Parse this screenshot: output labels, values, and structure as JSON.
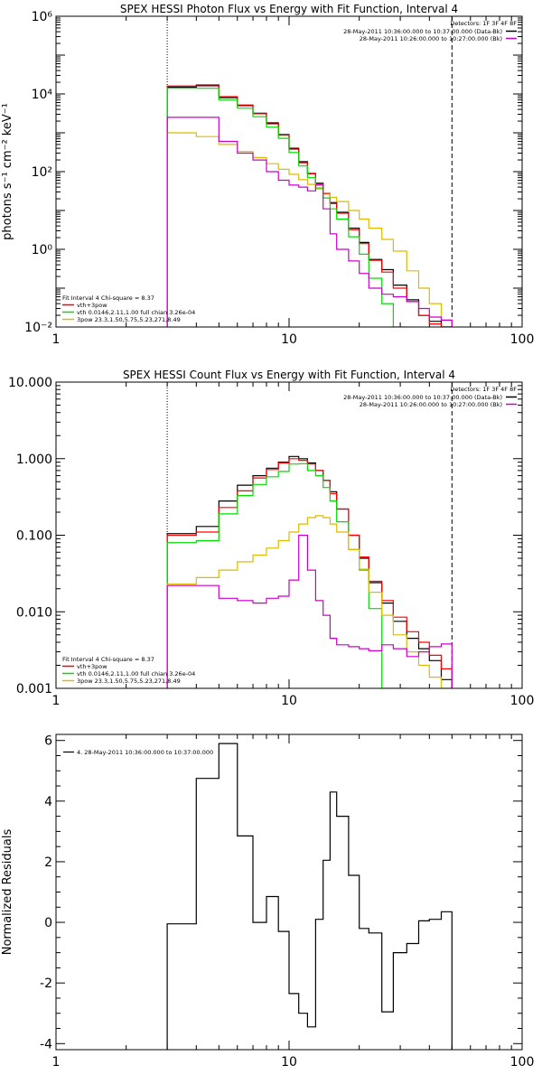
{
  "chart_data": [
    {
      "type": "line",
      "title": "SPEX HESSI Photon Flux vs Energy with Fit Function, Interval 4",
      "xlabel": "",
      "ylabel": "photons s⁻¹ cm⁻² keV⁻¹",
      "xscale": "log",
      "yscale": "log",
      "xlim": [
        1,
        100
      ],
      "ylim": [
        0.01,
        1000000
      ],
      "xticks": [
        "1",
        "10",
        "100"
      ],
      "yticks": [
        "10⁻²",
        "10⁰",
        "10²",
        "10⁴",
        "10⁶"
      ],
      "detectors": "Detectors: 1F 3F 4F 8F",
      "legend_right": [
        "28-May-2011 10:36:00.000 to 10:37:00.000 (Data-Bk)",
        "28-May-2011 10:26:00.000 to 10:27:00.000 (Bk)"
      ],
      "fit_info": "Fit Interval 4   Chi-square = 8.37",
      "legend_left": [
        "vth+3pow",
        "vth 0.0146,2.11,1.00  full chian 3.26e-04",
        "3pow 23.3,1.50,5.75,5.23,271,8.49"
      ],
      "colors": {
        "data": "#000000",
        "bk": "#cc00cc",
        "total": "#ff0000",
        "vth": "#00dd00",
        "pow": "#ddbb00"
      },
      "energy_edges": [
        3,
        4,
        5,
        6,
        7,
        8,
        9,
        10,
        11,
        12,
        13,
        14,
        15,
        16,
        18,
        20,
        22,
        25,
        28,
        32,
        36,
        40,
        45,
        50
      ],
      "series": [
        {
          "name": "28-May-2011 10:36:00.000 to 10:37:00.000 (Data-Bk)",
          "color": "#000000",
          "values": [
            15000,
            17000,
            8000,
            5000,
            3200,
            1800,
            900,
            400,
            180,
            90,
            50,
            28,
            16,
            9,
            3.5,
            1.5,
            0.55,
            0.3,
            0.12,
            0.05,
            0.02,
            0.014,
            0.009
          ]
        },
        {
          "name": "vth+3pow",
          "color": "#ff0000",
          "values": [
            16000,
            16000,
            8500,
            5200,
            3100,
            1700,
            870,
            380,
            170,
            88,
            48,
            27,
            15,
            8.5,
            3.2,
            1.4,
            0.52,
            0.26,
            0.1,
            0.045,
            0.02,
            0.012,
            0.008
          ]
        },
        {
          "name": "vth",
          "color": "#00dd00",
          "values": [
            14000,
            14000,
            7000,
            4300,
            2600,
            1400,
            720,
            310,
            140,
            70,
            38,
            21,
            11,
            6,
            2.1,
            0.75,
            0.18,
            0.04,
            0.009
          ]
        },
        {
          "name": "3pow",
          "color": "#ddbb00",
          "values": [
            1000,
            800,
            500,
            330,
            230,
            160,
            115,
            85,
            62,
            47,
            36,
            28,
            22,
            17,
            10,
            6,
            3.5,
            1.8,
            0.9,
            0.28,
            0.1,
            0.04,
            0.015
          ]
        },
        {
          "name": "28-May-2011 10:26:00.000 to 10:27:00.000 (Bk)",
          "color": "#cc00cc",
          "values": [
            2500,
            2500,
            600,
            300,
            200,
            100,
            60,
            45,
            40,
            32,
            45,
            11,
            2.5,
            1.0,
            0.5,
            0.24,
            0.1,
            0.07,
            0.06,
            0.045,
            0.03,
            0.018,
            0.015
          ]
        }
      ]
    },
    {
      "type": "line",
      "title": "SPEX HESSI Count Flux vs Energy with Fit Function, Interval 4",
      "xlabel": "",
      "ylabel": "",
      "xscale": "log",
      "yscale": "log",
      "xlim": [
        1,
        100
      ],
      "ylim": [
        0.001,
        10
      ],
      "xticks": [
        "1",
        "10",
        "100"
      ],
      "yticks": [
        "0.001",
        "0.010",
        "0.100",
        "1.000",
        "10.000"
      ],
      "detectors": "Detectors: 1F 3F 4F 8F",
      "legend_right": [
        "28-May-2011 10:36:00.000 to 10:37:00.000 (Data-Bk)",
        "28-May-2011 10:26:00.000 to 10:27:00.000 (Bk)"
      ],
      "fit_info": "Fit Interval 4   Chi-square = 8.37",
      "legend_left": [
        "vth+3pow",
        "vth 0.0146,2.11,1.00  full chian 3.26e-04",
        "3pow 23.3,1.50,5.75,5.23,271,8.49"
      ],
      "colors": {
        "data": "#000000",
        "bk": "#cc00cc",
        "total": "#ff0000",
        "vth": "#00dd00",
        "pow": "#ddbb00"
      },
      "energy_edges": [
        3,
        4,
        5,
        6,
        7,
        8,
        9,
        10,
        11,
        12,
        13,
        14,
        15,
        16,
        18,
        20,
        22,
        25,
        28,
        32,
        36,
        40,
        45,
        50
      ],
      "series": [
        {
          "name": "28-May-2011 10:36:00.000 to 10:37:00.000 (Data-Bk)",
          "color": "#000000",
          "values": [
            0.105,
            0.13,
            0.28,
            0.45,
            0.6,
            0.75,
            0.9,
            1.07,
            1.0,
            0.88,
            0.7,
            0.52,
            0.37,
            0.22,
            0.1,
            0.05,
            0.024,
            0.013,
            0.0075,
            0.0045,
            0.0033,
            0.0023,
            0.0013
          ]
        },
        {
          "name": "vth+3pow",
          "color": "#ff0000",
          "values": [
            0.1,
            0.11,
            0.23,
            0.38,
            0.56,
            0.72,
            0.88,
            1.0,
            0.95,
            0.85,
            0.7,
            0.52,
            0.35,
            0.22,
            0.1,
            0.052,
            0.025,
            0.014,
            0.0085,
            0.0055,
            0.004,
            0.0027,
            0.0018
          ]
        },
        {
          "name": "vth",
          "color": "#00dd00",
          "values": [
            0.08,
            0.085,
            0.19,
            0.33,
            0.46,
            0.58,
            0.68,
            0.85,
            0.86,
            0.7,
            0.6,
            0.42,
            0.28,
            0.15,
            0.065,
            0.035,
            0.011,
            0.001,
            0.0009
          ]
        },
        {
          "name": "3pow",
          "color": "#ddbb00",
          "values": [
            0.023,
            0.028,
            0.035,
            0.045,
            0.055,
            0.068,
            0.085,
            0.11,
            0.14,
            0.17,
            0.18,
            0.17,
            0.14,
            0.11,
            0.065,
            0.036,
            0.018,
            0.009,
            0.005,
            0.003,
            0.002,
            0.0014,
            0.001
          ]
        },
        {
          "name": "28-May-2011 10:26:00.000 to 10:27:00.000 (Bk)",
          "color": "#cc00cc",
          "values": [
            0.022,
            0.022,
            0.015,
            0.014,
            0.013,
            0.015,
            0.016,
            0.026,
            0.1,
            0.035,
            0.014,
            0.009,
            0.0045,
            0.0037,
            0.0035,
            0.0033,
            0.0031,
            0.0037,
            0.0033,
            0.0026,
            0.003,
            0.0035,
            0.0038
          ]
        }
      ]
    },
    {
      "type": "line",
      "title": "",
      "xlabel": "",
      "ylabel": "Normalized Residuals",
      "xscale": "log",
      "yscale": "linear",
      "xlim": [
        1,
        100
      ],
      "ylim": [
        -4.2,
        6.2
      ],
      "xticks": [
        "1",
        "10",
        "100"
      ],
      "yticks": [
        "-4",
        "-2",
        "0",
        "2",
        "4",
        "6"
      ],
      "legend": [
        "4. 28-May-2011 10:36:00.000 to 10:37:00.000"
      ],
      "energy_edges": [
        3,
        4,
        5,
        6,
        7,
        8,
        9,
        10,
        11,
        12,
        13,
        14,
        15,
        16,
        18,
        20,
        22,
        25,
        28,
        32,
        36,
        40,
        45,
        50
      ],
      "series": [
        {
          "name": "4. 28-May-2011 10:36:00.000 to 10:37:00.000",
          "color": "#000000",
          "values": [
            -0.05,
            4.75,
            5.9,
            2.85,
            0.0,
            0.85,
            -0.3,
            -2.35,
            -3.0,
            -3.45,
            0.1,
            2.05,
            4.3,
            3.5,
            1.55,
            -0.2,
            -0.35,
            -2.95,
            -1.0,
            -0.7,
            0.05,
            0.1,
            0.35
          ]
        }
      ]
    }
  ]
}
